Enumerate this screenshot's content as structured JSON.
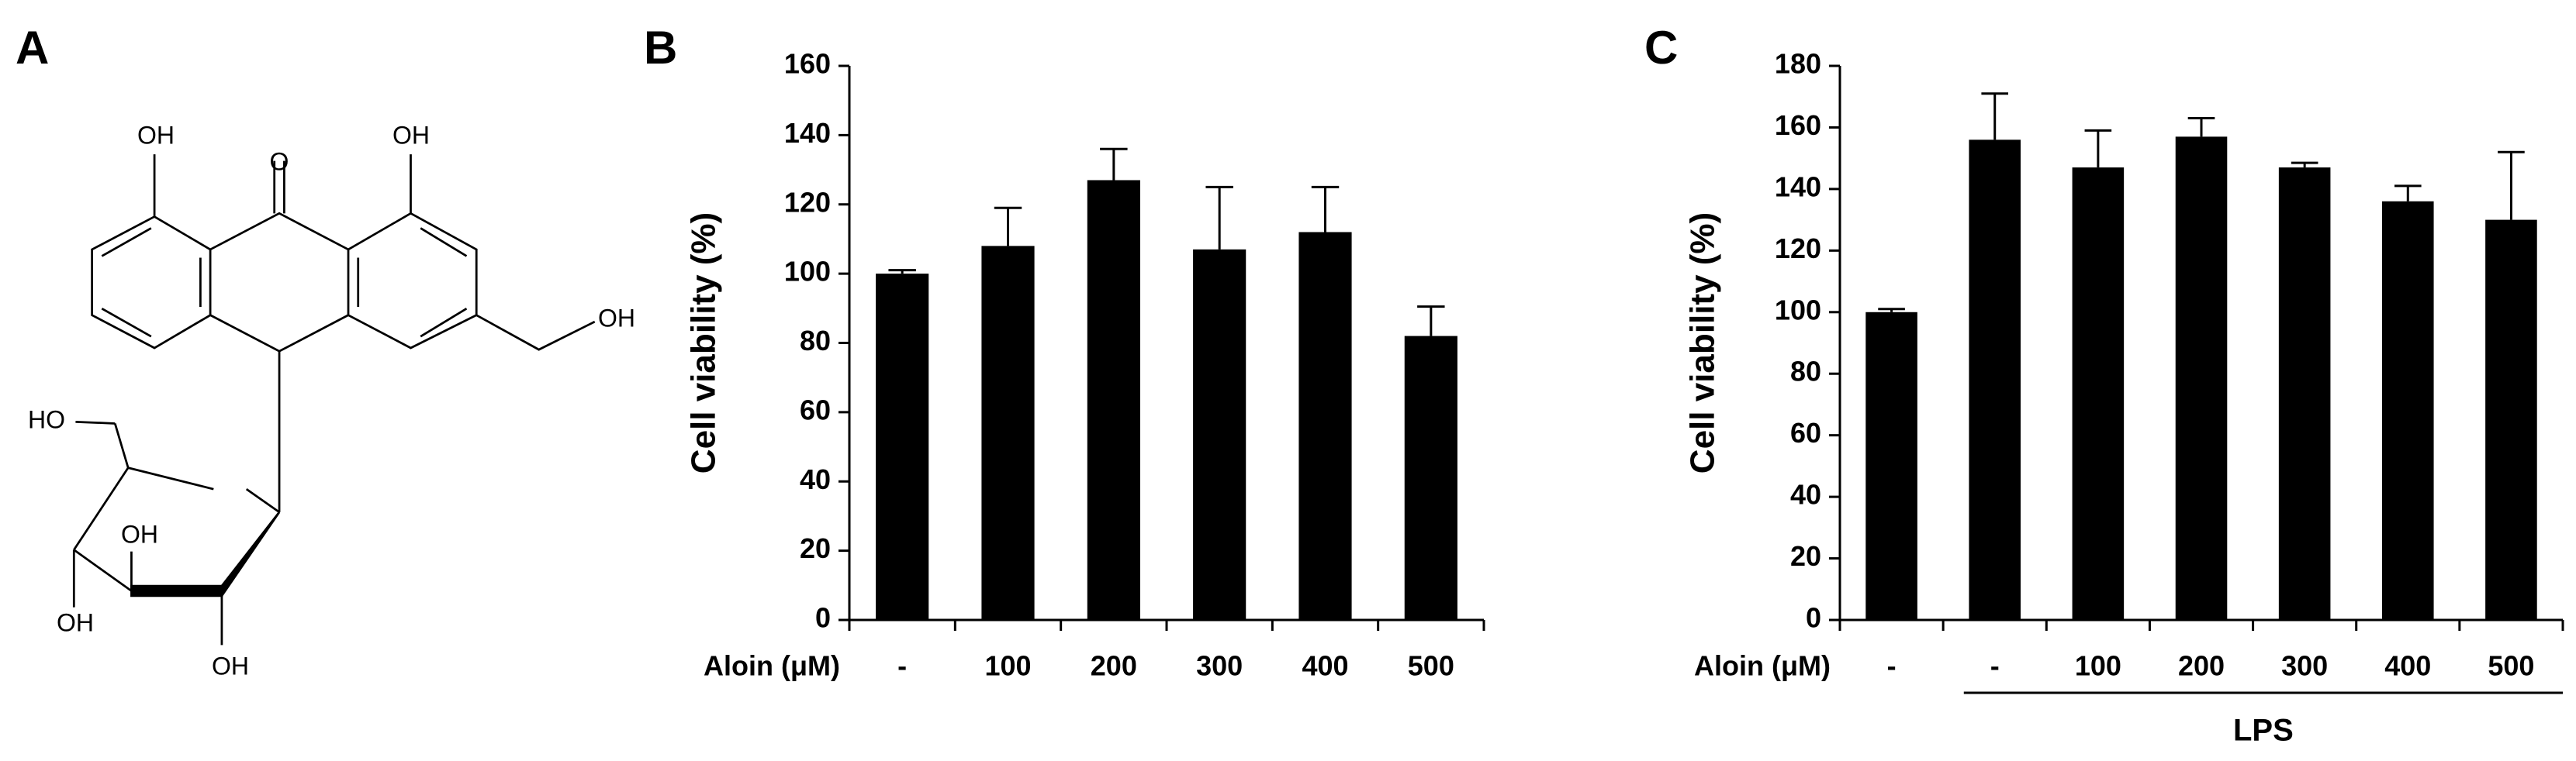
{
  "structure": {
    "panel_label": "A",
    "atom_labels": [
      "OH",
      "O",
      "OH",
      "OH",
      "HO",
      "OH",
      "OH",
      "OH"
    ]
  },
  "chart_data": [
    {
      "type": "bar",
      "panel_label": "B",
      "ylabel": "Cell viability (%)",
      "xlabel": "Aloin (μM)",
      "categories": [
        "-",
        "100",
        "200",
        "300",
        "400",
        "500"
      ],
      "values": [
        100,
        108,
        127,
        107,
        112,
        82
      ],
      "errors": [
        1,
        11,
        9,
        18,
        13,
        8.5
      ],
      "color": "#000000",
      "ylim": [
        0,
        160
      ],
      "yticks": [
        0,
        20,
        40,
        60,
        80,
        100,
        120,
        140,
        160
      ]
    },
    {
      "type": "bar",
      "panel_label": "C",
      "ylabel": "Cell viability (%)",
      "xlabel": "Aloin (μM)",
      "categories": [
        "-",
        "-",
        "100",
        "200",
        "300",
        "400",
        "500"
      ],
      "values": [
        100,
        156,
        147,
        157,
        147,
        136,
        130
      ],
      "errors": [
        1,
        15,
        12,
        6,
        1.5,
        5,
        22
      ],
      "annotation": "LPS",
      "color": "#000000",
      "ylim": [
        0,
        180
      ],
      "yticks": [
        0,
        20,
        40,
        60,
        80,
        100,
        120,
        140,
        160,
        180
      ]
    }
  ]
}
